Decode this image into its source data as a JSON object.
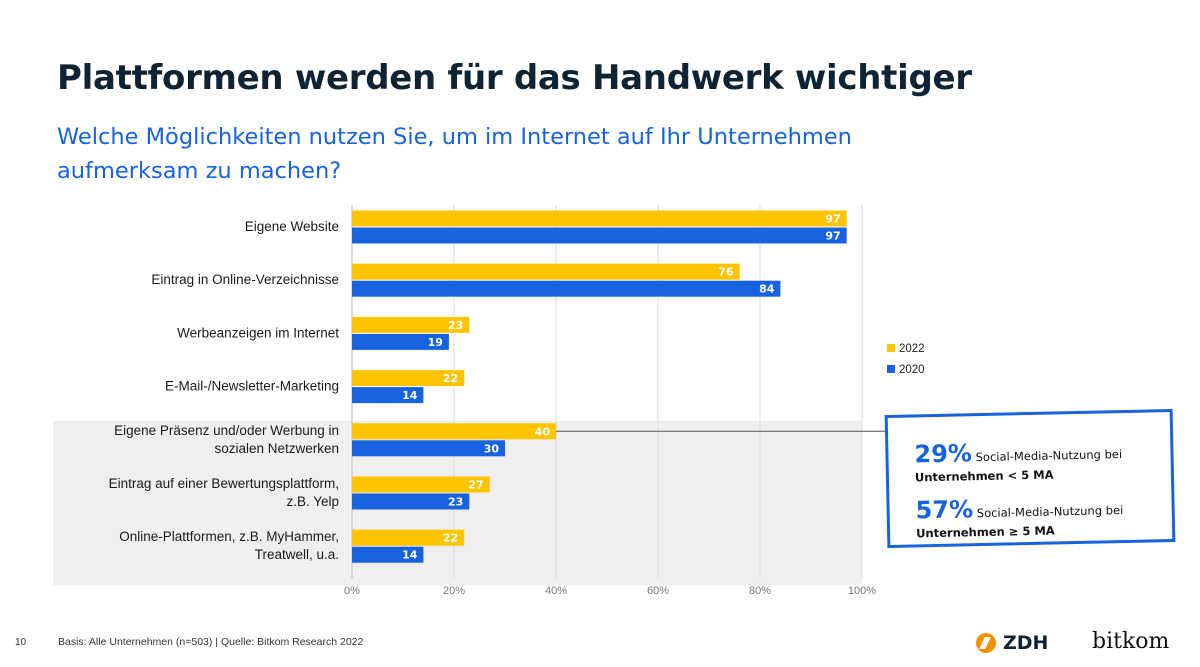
{
  "header": {
    "title": "Plattformen werden für das Handwerk wichtiger",
    "subtitle": "Welche Möglichkeiten nutzen Sie, um im Internet auf Ihr Unternehmen aufmerksam zu machen?"
  },
  "colors": {
    "series_2022": "#ffc400",
    "series_2020": "#1862e0",
    "accent": "#1862e0",
    "highlight_bg": "#efefef"
  },
  "chart_data": {
    "type": "bar",
    "orientation": "horizontal",
    "categories": [
      [
        "Eigene Website"
      ],
      [
        "Eintrag in Online-Verzeichnisse"
      ],
      [
        "Werbeanzeigen im Internet"
      ],
      [
        "E-Mail-/Newsletter-Marketing"
      ],
      [
        "Eigene Präsenz und/oder Werbung in",
        "sozialen Netzwerken"
      ],
      [
        "Eintrag auf einer Bewertungsplattform,",
        "z.B. Yelp"
      ],
      [
        "Online-Plattformen, z.B. MyHammer,",
        "Treatwell, u.a."
      ]
    ],
    "series": [
      {
        "name": "2022",
        "values": [
          97,
          76,
          23,
          22,
          40,
          27,
          22
        ]
      },
      {
        "name": "2020",
        "values": [
          97,
          84,
          19,
          14,
          30,
          23,
          14
        ]
      }
    ],
    "xlim": [
      0,
      100
    ],
    "xticks": [
      "0%",
      "20%",
      "40%",
      "60%",
      "80%",
      "100%"
    ],
    "grid": true,
    "legend": "right",
    "highlighted_categories": [
      4,
      5,
      6
    ]
  },
  "callout": {
    "items": [
      {
        "pct": "29%",
        "line1": "Social-Media-Nutzung bei",
        "line2": "Unternehmen < 5 MA"
      },
      {
        "pct": "57%",
        "line1": "Social-Media-Nutzung bei",
        "line2": "Unternehmen ≥ 5 MA"
      }
    ]
  },
  "footer": {
    "page_number": "10",
    "source": "Basis: Alle Unternehmen (n=503) | Quelle: Bitkom Research 2022",
    "logo_zdh": "ZDH",
    "logo_bitkom": "bitkom"
  }
}
